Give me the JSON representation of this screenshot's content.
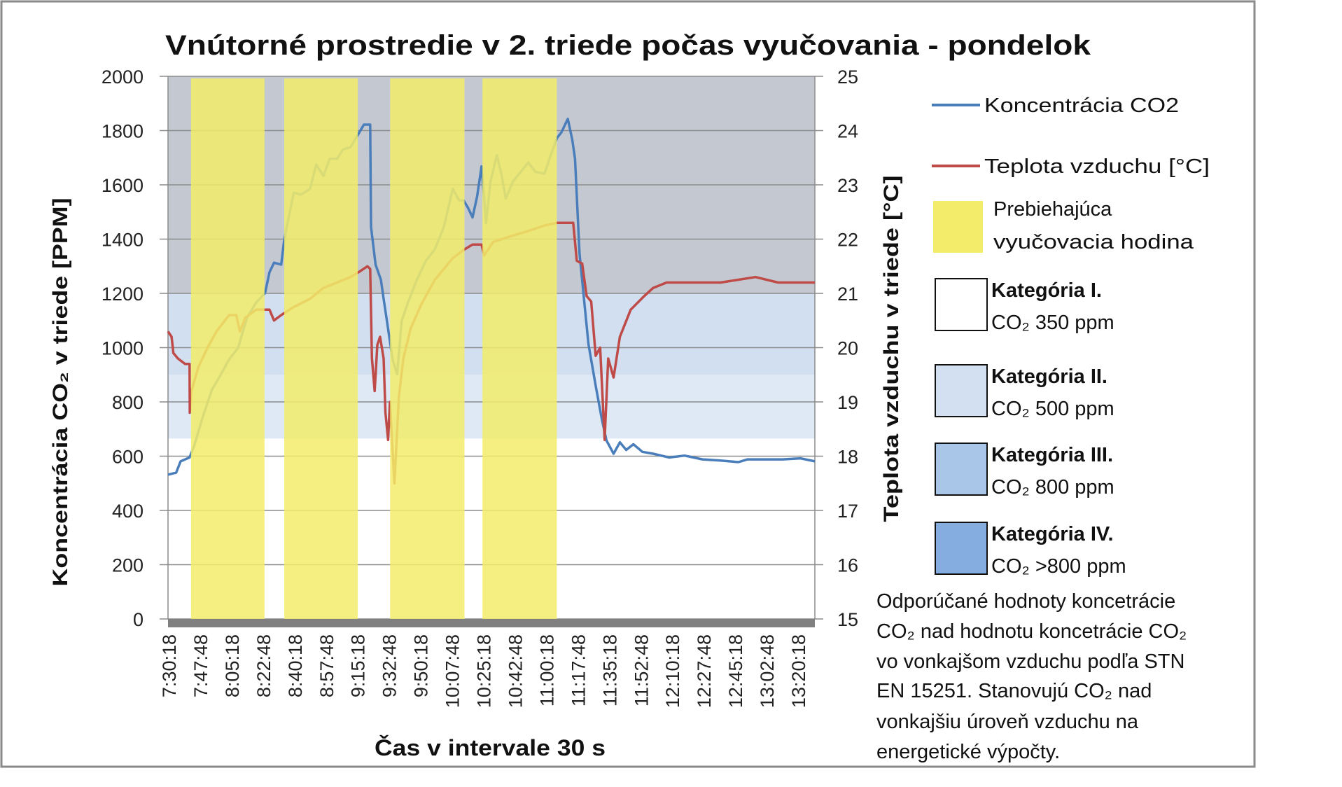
{
  "chart_data": {
    "type": "line",
    "title": "Vnútorné prostredie v 2. triede počas vyučovania  - pondelok",
    "xlabel": "Čas v intervale 30 s",
    "ylabel": "Koncentrácia CO₂ v triede [PPM]",
    "y2label": "Teplota vzduchu v triede [°C]",
    "x_unit": "minutes since 7:30:18",
    "xlim": [
      0,
      360
    ],
    "ylim": [
      0,
      2000
    ],
    "y2lim": [
      15,
      25
    ],
    "yticks": [
      "0",
      "200",
      "400",
      "600",
      "800",
      "1000",
      "1200",
      "1400",
      "1600",
      "1800",
      "2000"
    ],
    "y2ticks": [
      "15",
      "16",
      "17",
      "18",
      "19",
      "20",
      "21",
      "22",
      "23",
      "24",
      "25"
    ],
    "xticks": [
      "7:30:18",
      "7:47:48",
      "8:05:18",
      "8:22:48",
      "8:40:18",
      "8:57:48",
      "9:15:18",
      "9:32:48",
      "9:50:18",
      "10:07:48",
      "10:25:18",
      "10:42:48",
      "11:00:18",
      "11:17:48",
      "11:35:18",
      "11:52:48",
      "12:10:18",
      "12:27:48",
      "12:45:18",
      "13:02:48",
      "13:20:18"
    ],
    "grid": true,
    "legend_position": "right",
    "bands": [
      {
        "from": 0,
        "to": 665,
        "color": "#ffffff"
      },
      {
        "from": 665,
        "to": 900,
        "color": "#dfe8f5"
      },
      {
        "from": 900,
        "to": 1200,
        "color": "#d1dff1"
      },
      {
        "from": 1200,
        "to": 2000,
        "color": "#c4c9d1"
      }
    ],
    "lessons": [
      [
        12.8,
        53.7
      ],
      [
        64.7,
        105.6
      ],
      [
        123.6,
        165.0
      ],
      [
        175.0,
        216.4
      ]
    ],
    "series": [
      {
        "name": "Koncentrácia CO2",
        "axis": "left",
        "color": "#4a7ebb",
        "points": [
          [
            0,
            532
          ],
          [
            4.5,
            539
          ],
          [
            7,
            581
          ],
          [
            12,
            595
          ],
          [
            14.5,
            637
          ],
          [
            19.5,
            748
          ],
          [
            24.5,
            846
          ],
          [
            29.5,
            902
          ],
          [
            34,
            957
          ],
          [
            39,
            999
          ],
          [
            44,
            1111
          ],
          [
            49,
            1166
          ],
          [
            54,
            1201
          ],
          [
            56.5,
            1278
          ],
          [
            59,
            1313
          ],
          [
            63,
            1306
          ],
          [
            64.5,
            1390
          ],
          [
            66.5,
            1459
          ],
          [
            70,
            1571
          ],
          [
            74,
            1564
          ],
          [
            79,
            1585
          ],
          [
            82.5,
            1675
          ],
          [
            86.5,
            1633
          ],
          [
            90,
            1696
          ],
          [
            94,
            1696
          ],
          [
            97.5,
            1731
          ],
          [
            101.5,
            1738
          ],
          [
            106.5,
            1794
          ],
          [
            109,
            1822
          ],
          [
            112.5,
            1822
          ],
          [
            113,
            1445
          ],
          [
            115.5,
            1306
          ],
          [
            118.5,
            1250
          ],
          [
            120,
            1180
          ],
          [
            122.5,
            1069
          ],
          [
            125,
            957
          ],
          [
            127.5,
            902
          ],
          [
            130,
            1097
          ],
          [
            133.5,
            1166
          ],
          [
            138.5,
            1250
          ],
          [
            143.5,
            1320
          ],
          [
            148.5,
            1362
          ],
          [
            153.5,
            1445
          ],
          [
            158.5,
            1585
          ],
          [
            162,
            1543
          ],
          [
            164.5,
            1543
          ],
          [
            167,
            1515
          ],
          [
            169.5,
            1480
          ],
          [
            172,
            1557
          ],
          [
            174.5,
            1668
          ],
          [
            177,
            1459
          ],
          [
            179.5,
            1613
          ],
          [
            183,
            1710
          ],
          [
            185.5,
            1641
          ],
          [
            188,
            1550
          ],
          [
            192,
            1613
          ],
          [
            195.5,
            1641
          ],
          [
            200.5,
            1682
          ],
          [
            204.5,
            1648
          ],
          [
            209.5,
            1641
          ],
          [
            213,
            1710
          ],
          [
            216.5,
            1773
          ],
          [
            219,
            1794
          ],
          [
            222.5,
            1843
          ],
          [
            225,
            1766
          ],
          [
            226.5,
            1696
          ],
          [
            229,
            1348
          ],
          [
            231.5,
            1180
          ],
          [
            234,
            1013
          ],
          [
            238,
            860
          ],
          [
            241.5,
            735
          ],
          [
            244,
            658
          ],
          [
            248,
            609
          ],
          [
            251.5,
            651
          ],
          [
            255,
            623
          ],
          [
            259,
            644
          ],
          [
            264,
            616
          ],
          [
            270,
            609
          ],
          [
            279,
            595
          ],
          [
            287.5,
            602
          ],
          [
            297.5,
            588
          ],
          [
            307.5,
            584
          ],
          [
            317.5,
            578
          ],
          [
            322.5,
            588
          ],
          [
            332,
            588
          ],
          [
            342,
            588
          ],
          [
            352,
            592
          ],
          [
            360,
            581
          ]
        ]
      },
      {
        "name": "Teplota vzduchu [°C]",
        "axis": "right",
        "color": "#be4b48",
        "points": [
          [
            0,
            20.3
          ],
          [
            2,
            20.2
          ],
          [
            3,
            19.9
          ],
          [
            5.5,
            19.8
          ],
          [
            9.5,
            19.7
          ],
          [
            12,
            19.7
          ],
          [
            12.1,
            18.8
          ],
          [
            13,
            19.2
          ],
          [
            17,
            19.65
          ],
          [
            22,
            20.0
          ],
          [
            27,
            20.3
          ],
          [
            30.5,
            20.45
          ],
          [
            34,
            20.6
          ],
          [
            38,
            20.6
          ],
          [
            40,
            20.3
          ],
          [
            43,
            20.55
          ],
          [
            49,
            20.7
          ],
          [
            56.5,
            20.7
          ],
          [
            59,
            20.5
          ],
          [
            63,
            20.6
          ],
          [
            70,
            20.75
          ],
          [
            79,
            20.9
          ],
          [
            86.5,
            21.1
          ],
          [
            94,
            21.2
          ],
          [
            101.5,
            21.3
          ],
          [
            106.5,
            21.4
          ],
          [
            111,
            21.5
          ],
          [
            112.5,
            21.45
          ],
          [
            113.5,
            19.8
          ],
          [
            115,
            19.2
          ],
          [
            116.5,
            20.05
          ],
          [
            118,
            20.2
          ],
          [
            120,
            19.8
          ],
          [
            121,
            18.8
          ],
          [
            122.5,
            18.3
          ],
          [
            123.5,
            19.0
          ],
          [
            126,
            17.5
          ],
          [
            128.5,
            19.1
          ],
          [
            131,
            19.8
          ],
          [
            135,
            20.35
          ],
          [
            141,
            20.8
          ],
          [
            148.5,
            21.25
          ],
          [
            158.5,
            21.65
          ],
          [
            164.5,
            21.8
          ],
          [
            169.5,
            21.9
          ],
          [
            174.5,
            21.9
          ],
          [
            176,
            21.7
          ],
          [
            181,
            21.95
          ],
          [
            190.5,
            22.05
          ],
          [
            200.5,
            22.15
          ],
          [
            209.5,
            22.25
          ],
          [
            216.5,
            22.3
          ],
          [
            225.5,
            22.3
          ],
          [
            227.5,
            21.6
          ],
          [
            230.5,
            21.55
          ],
          [
            233,
            20.95
          ],
          [
            235.5,
            20.85
          ],
          [
            238,
            19.85
          ],
          [
            240.5,
            20.0
          ],
          [
            243,
            18.3
          ],
          [
            245,
            19.8
          ],
          [
            248,
            19.45
          ],
          [
            251.5,
            20.2
          ],
          [
            257.5,
            20.7
          ],
          [
            265,
            20.95
          ],
          [
            270,
            21.1
          ],
          [
            277.5,
            21.2
          ],
          [
            307.5,
            21.2
          ],
          [
            327,
            21.3
          ],
          [
            339.5,
            21.2
          ],
          [
            360,
            21.2
          ]
        ]
      }
    ],
    "legend": {
      "co2": "Koncentrácia CO2",
      "temp": "Teplota vzduchu [°C]",
      "lesson_line1": "Prebiehajúca",
      "lesson_line2": "vyučovacia hodina",
      "lesson_color": "#f2ec6a",
      "categories": [
        {
          "name": "Kategória I.",
          "value": "CO₂ 350 ppm",
          "color": "#ffffff"
        },
        {
          "name": "Kategória II.",
          "value": "CO₂ 500 ppm",
          "color": "#d3e0f2"
        },
        {
          "name": "Kategória III.",
          "value": "CO₂ 800 ppm",
          "color": "#a9c6e8"
        },
        {
          "name": "Kategória IV.",
          "value": "CO₂ >800 ppm",
          "color": "#85ade0"
        }
      ]
    },
    "notes": [
      "Odporúčané hodnoty koncetrácie",
      "CO₂ nad hodnotu koncetrácie CO₂",
      "vo vonkajšom vzduchu podľa STN",
      "EN 15251. Stanovujú CO₂ nad",
      "vonkajšiu úroveň vzduchu na",
      "energetické výpočty."
    ]
  }
}
